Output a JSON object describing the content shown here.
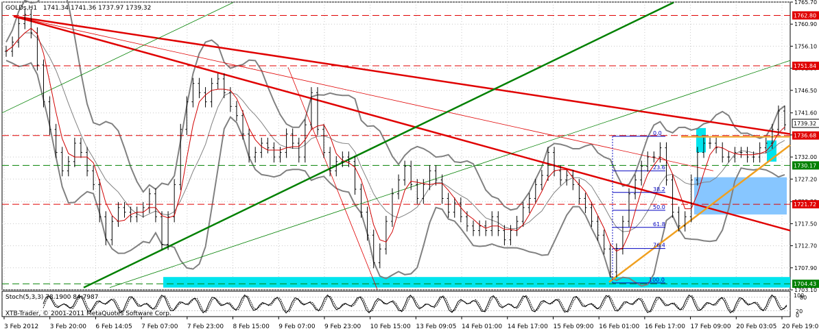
{
  "header": {
    "symbol": "GOLDs,H1",
    "ohlc": "1741.34 1741.36 1737.97 1739.32"
  },
  "footer": {
    "branding": "XTB-Trader, © 2001-2011 MetaQuotes Software Corp."
  },
  "stochastic": {
    "label": "Stoch(5,3,3) 78.1900 84.7987",
    "scale_top": "100",
    "scale_level": "80",
    "scale_mid": "20",
    "scale_bottom": "0",
    "levels": [
      80,
      20
    ]
  },
  "colors": {
    "background": "#ffffff",
    "grid": "#c8c8c8",
    "price_line_label": "#000000",
    "horizontal_red": "#e00000",
    "horizontal_green": "#008000",
    "trendline_red": "#e00000",
    "trendline_green": "#008000",
    "trendline_orange": "#f0a020",
    "bollinger": "#808080",
    "moving_average": "#d00000",
    "cyan_zone": "#00e5ee",
    "blue_zone": "#87c6ff",
    "fib": "#0000c0"
  },
  "chart_data": {
    "type": "line",
    "title": "GOLDs,H1",
    "ylim": [
      1703.1,
      1765.7
    ],
    "y_ticks": [
      {
        "value": 1765.7,
        "label": "1765.70"
      },
      {
        "value": 1760.9,
        "label": "1760.90"
      },
      {
        "value": 1756.1,
        "label": "1756.10"
      },
      {
        "value": 1751.3,
        "label": "1751.30"
      },
      {
        "value": 1746.5,
        "label": "1746.50"
      },
      {
        "value": 1741.6,
        "label": "1741.60"
      },
      {
        "value": 1736.8,
        "label": "1736.80"
      },
      {
        "value": 1732.0,
        "label": "1732.00"
      },
      {
        "value": 1727.2,
        "label": "1727.20"
      },
      {
        "value": 1722.3,
        "label": "1722.30"
      },
      {
        "value": 1717.5,
        "label": "1717.50"
      },
      {
        "value": 1712.7,
        "label": "1712.70"
      },
      {
        "value": 1707.9,
        "label": "1707.90"
      },
      {
        "value": 1703.1,
        "label": "1703.10"
      }
    ],
    "x_labels": [
      "3 Feb 2012",
      "3 Feb 20:00",
      "6 Feb 14:05",
      "7 Feb 07:00",
      "7 Feb 23:00",
      "8 Feb 15:00",
      "9 Feb 07:00",
      "9 Feb 23:00",
      "10 Feb 15:00",
      "13 Feb 09:05",
      "14 Feb 01:00",
      "14 Feb 17:00",
      "15 Feb 09:00",
      "16 Feb 01:00",
      "16 Feb 17:00",
      "17 Feb 09:00",
      "20 Feb 03:05",
      "20 Feb 19:05"
    ],
    "price_levels": [
      {
        "value": 1762.8,
        "label": "1762.80",
        "color": "#e00000"
      },
      {
        "value": 1751.84,
        "label": "1751.84",
        "color": "#e00000"
      },
      {
        "value": 1739.32,
        "label": "1739.32",
        "color": "#000000"
      },
      {
        "value": 1736.68,
        "label": "1736.68",
        "color": "#e00000"
      },
      {
        "value": 1730.17,
        "label": "1730.17",
        "color": "#008000"
      },
      {
        "value": 1721.72,
        "label": "1721.72",
        "color": "#e00000"
      },
      {
        "value": 1704.43,
        "label": "1704.43",
        "color": "#008000"
      }
    ],
    "fibonacci": [
      {
        "level": "0.0",
        "value": 1736.5
      },
      {
        "level": "23.6",
        "value": 1729.0
      },
      {
        "level": "38.2",
        "value": 1724.3
      },
      {
        "level": "50.0",
        "value": 1720.4
      },
      {
        "level": "61.8",
        "value": 1716.7
      },
      {
        "level": "76.4",
        "value": 1712.1
      },
      {
        "level": "100.0",
        "value": 1704.6
      }
    ],
    "series": [
      {
        "values": [
          1755,
          1757,
          1761,
          1763,
          1759,
          1752,
          1744,
          1738,
          1733,
          1729,
          1731,
          1735,
          1733,
          1729,
          1726,
          1719,
          1714,
          1718,
          1721,
          1720,
          1719,
          1720,
          1721,
          1724,
          1719,
          1713,
          1719,
          1726,
          1738,
          1744,
          1748,
          1746,
          1744,
          1748,
          1749,
          1746,
          1743,
          1741,
          1737,
          1732,
          1733,
          1735,
          1734,
          1732,
          1733,
          1737,
          1735,
          1732,
          1739,
          1746,
          1738,
          1733,
          1729,
          1731,
          1732,
          1731,
          1725,
          1720,
          1715,
          1709,
          1712,
          1718,
          1724,
          1727,
          1730,
          1726,
          1723,
          1726,
          1729,
          1727,
          1723,
          1720,
          1722,
          1719,
          1717,
          1716,
          1717,
          1716,
          1719,
          1716,
          1714,
          1716,
          1718,
          1721,
          1723,
          1726,
          1728,
          1733,
          1729,
          1727,
          1728,
          1726,
          1723,
          1721,
          1718,
          1715,
          1712,
          1707,
          1712,
          1718,
          1724,
          1727,
          1730,
          1732,
          1732,
          1734,
          1727,
          1720,
          1717,
          1719,
          1727,
          1733,
          1735,
          1735,
          1734,
          1732,
          1732,
          1733,
          1733,
          1732,
          1732,
          1734,
          1735,
          1738,
          1742,
          1739
        ]
      }
    ]
  }
}
